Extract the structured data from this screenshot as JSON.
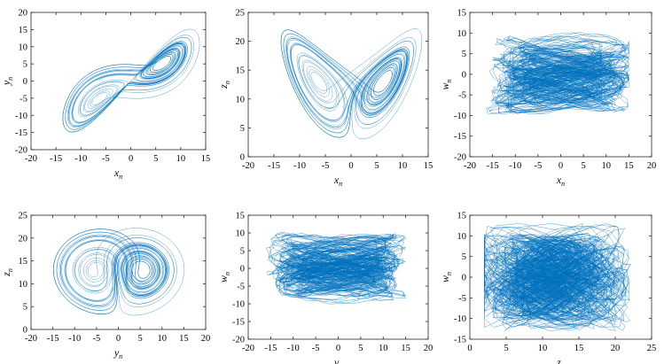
{
  "chart_data": [
    {
      "type": "line",
      "panel": "xy",
      "xlabel": "x",
      "xlabel_sub": "n",
      "ylabel": "y",
      "ylabel_sub": "n",
      "xlim": [
        -20,
        15
      ],
      "ylim": [
        -20,
        20
      ],
      "xticks": [
        -20,
        -15,
        -10,
        -5,
        0,
        5,
        10,
        15
      ],
      "yticks": [
        -20,
        -15,
        -10,
        -5,
        0,
        5,
        10,
        15,
        20
      ],
      "grid": false,
      "color": "#0072BD",
      "attractor": "lorenz_xy"
    },
    {
      "type": "line",
      "panel": "xz",
      "xlabel": "x",
      "xlabel_sub": "n",
      "ylabel": "z",
      "ylabel_sub": "n",
      "xlim": [
        -20,
        15
      ],
      "ylim": [
        0,
        25
      ],
      "xticks": [
        -20,
        -15,
        -10,
        -5,
        0,
        5,
        10,
        15
      ],
      "yticks": [
        0,
        5,
        10,
        15,
        20,
        25
      ],
      "grid": false,
      "color": "#0072BD",
      "attractor": "lorenz_xz"
    },
    {
      "type": "line",
      "panel": "xw",
      "xlabel": "x",
      "xlabel_sub": "n",
      "ylabel": "w",
      "ylabel_sub": "n",
      "xlim": [
        -20,
        20
      ],
      "ylim": [
        -20,
        15
      ],
      "xticks": [
        -20,
        -15,
        -10,
        -5,
        0,
        5,
        10,
        15,
        20
      ],
      "yticks": [
        -20,
        -15,
        -10,
        -5,
        0,
        5,
        10,
        15
      ],
      "grid": false,
      "color": "#0072BD",
      "attractor": "noise_band"
    },
    {
      "type": "line",
      "panel": "yz",
      "xlabel": "y",
      "xlabel_sub": "n",
      "ylabel": "z",
      "ylabel_sub": "n",
      "xlim": [
        -20,
        20
      ],
      "ylim": [
        0,
        25
      ],
      "xticks": [
        -20,
        -15,
        -10,
        -5,
        0,
        5,
        10,
        15,
        20
      ],
      "yticks": [
        0,
        5,
        10,
        15,
        20,
        25
      ],
      "grid": false,
      "color": "#0072BD",
      "attractor": "lorenz_yz"
    },
    {
      "type": "line",
      "panel": "yw",
      "xlabel": "y",
      "xlabel_sub": "n",
      "ylabel": "w",
      "ylabel_sub": "n",
      "xlim": [
        -20,
        20
      ],
      "ylim": [
        -20,
        15
      ],
      "xticks": [
        -20,
        -15,
        -10,
        -5,
        0,
        5,
        10,
        15,
        20
      ],
      "yticks": [
        -20,
        -15,
        -10,
        -5,
        0,
        5,
        10,
        15
      ],
      "grid": false,
      "color": "#0072BD",
      "attractor": "noise_band"
    },
    {
      "type": "line",
      "panel": "zw",
      "xlabel": "z",
      "xlabel_sub": "n",
      "ylabel": "w",
      "ylabel_sub": "n",
      "xlim": [
        0,
        25
      ],
      "ylim": [
        -15,
        15
      ],
      "xticks": [
        0,
        5,
        10,
        15,
        20,
        25
      ],
      "yticks": [
        -15,
        -10,
        -5,
        0,
        5,
        10,
        15
      ],
      "grid": false,
      "color": "#0072BD",
      "attractor": "noise_blob"
    }
  ]
}
